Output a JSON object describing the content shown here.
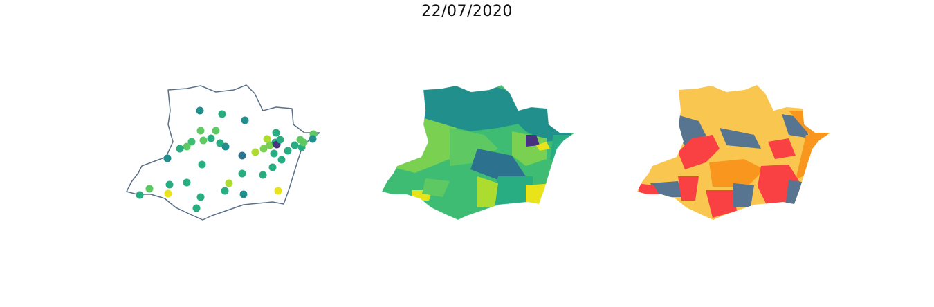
{
  "title": "22/07/2020",
  "colors": {
    "outline": "#5a7088",
    "viridis_dark": "#46327e",
    "viridis_blue": "#2c728e",
    "viridis_teal": "#21908d",
    "viridis_green": "#27ad81",
    "viridis_mid": "#3fbc73",
    "viridis_light": "#5ec962",
    "viridis_lime": "#7ad151",
    "viridis_yellowgreen": "#addc30",
    "viridis_yellow": "#e8e419",
    "risk_slate": "#577590",
    "risk_yellow": "#f9c74f",
    "risk_orange": "#f8961e",
    "risk_red": "#f94144"
  },
  "panels": [
    {
      "name": "points-map",
      "kind": "point-symbols"
    },
    {
      "name": "viridis-choropleth",
      "kind": "choropleth"
    },
    {
      "name": "risk-choropleth",
      "kind": "choropleth"
    }
  ]
}
